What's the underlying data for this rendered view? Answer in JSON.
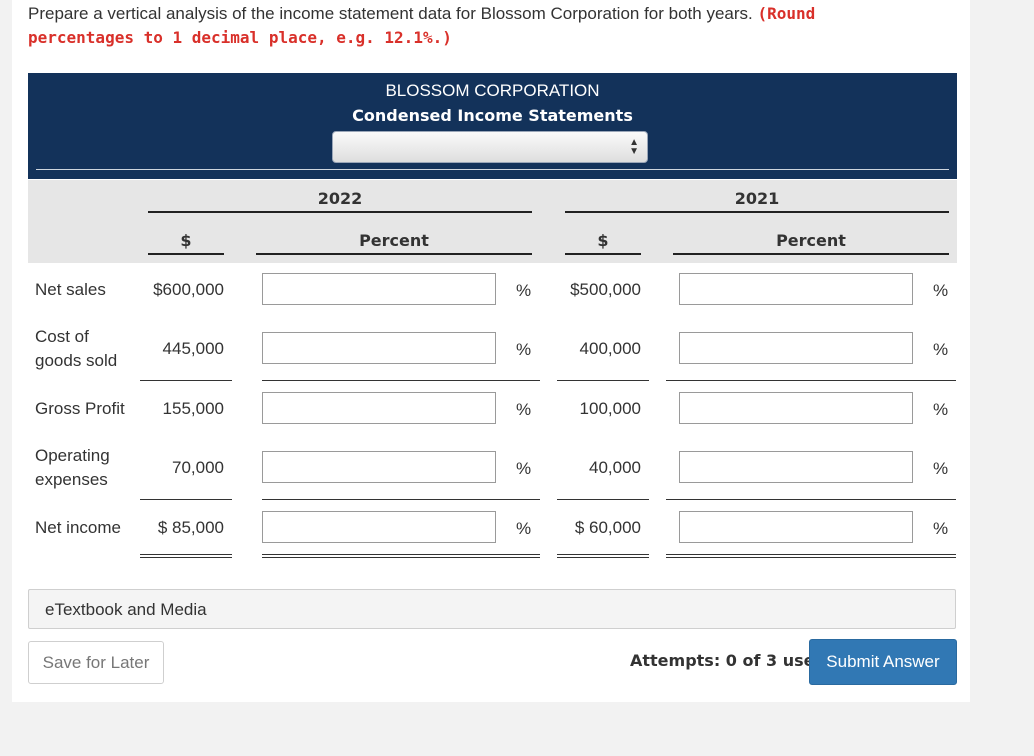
{
  "instructions": {
    "text": "Prepare a vertical analysis of the income statement data for Blossom Corporation for both years.",
    "note_line1": "(Round",
    "note_line2": "percentages to 1 decimal place, e.g. 12.1%.)"
  },
  "header": {
    "company": "BLOSSOM CORPORATION",
    "statement": "Condensed Income Statements",
    "dropdown_value": ""
  },
  "columns": {
    "year1": "2022",
    "year2": "2021",
    "dollar": "$",
    "percent": "Percent"
  },
  "rows": [
    {
      "label": "Net sales",
      "amt2022": "$600,000",
      "pct2022": "",
      "amt2021": "$500,000",
      "pct2021": "",
      "unit": "%"
    },
    {
      "label": "Cost of goods sold",
      "amt2022": "445,000",
      "pct2022": "",
      "amt2021": "400,000",
      "pct2021": "",
      "unit": "%"
    },
    {
      "label": "Gross Profit",
      "amt2022": "155,000",
      "pct2022": "",
      "amt2021": "100,000",
      "pct2021": "",
      "unit": "%"
    },
    {
      "label": "Operating expenses",
      "amt2022": "70,000",
      "pct2022": "",
      "amt2021": "40,000",
      "pct2021": "",
      "unit": "%"
    },
    {
      "label": "Net income",
      "amt2022": "$ 85,000",
      "pct2022": "",
      "amt2021": "$ 60,000",
      "pct2021": "",
      "unit": "%"
    }
  ],
  "etextbook": "eTextbook and Media",
  "save_label": "Save for Later",
  "attempts": "Attempts: 0 of 3 used",
  "submit_label": "Submit Answer",
  "colors": {
    "header_bg": "#13325a",
    "subheader_bg": "#e6e6e6",
    "accent_red": "#d9302a",
    "submit_bg": "#3178b4"
  }
}
